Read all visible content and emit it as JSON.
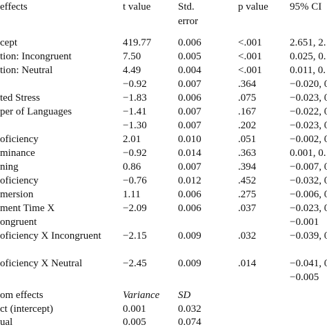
{
  "table": {
    "header": [
      "effects",
      "t value",
      "Std. error",
      "p value",
      "95% CI"
    ],
    "rows": [
      [
        "cept",
        "419.77",
        "0.006",
        "<.001",
        "2.651, 2."
      ],
      [
        "tion: Incongruent",
        "7.50",
        "0.005",
        "<.001",
        "0.025, 0."
      ],
      [
        "tion: Neutral",
        "4.49",
        "0.004",
        "<.001",
        "0.011, 0."
      ],
      [
        null,
        "−0.92",
        "0.007",
        ".364",
        "−0.020, 0."
      ],
      [
        "ted Stress",
        "−1.83",
        "0.006",
        ".075",
        "−0.023, 0."
      ],
      [
        "per of Languages",
        "−1.41",
        "0.007",
        ".167",
        "−0.022, 0."
      ],
      [
        null,
        "−1.30",
        "0.007",
        ".202",
        "−0.023, 0."
      ],
      [
        "oficiency",
        "2.01",
        "0.010",
        ".051",
        "−0.002, 0."
      ],
      [
        "minance",
        "−0.92",
        "0.014",
        ".363",
        "0.001, 0."
      ],
      [
        "ning",
        "0.86",
        "0.007",
        ".394",
        "−0.007, 0."
      ],
      [
        "oficiency",
        "−0.76",
        "0.012",
        ".452",
        "−0.032, 0."
      ],
      [
        "mersion",
        "1.11",
        "0.006",
        ".275",
        "−0.006, 0."
      ],
      [
        "ment Time X",
        "−2.09",
        "0.006",
        ".037",
        "−0.023, 0."
      ],
      [
        "ongruent",
        null,
        null,
        null,
        "−0.001"
      ],
      [
        "oficiency X Incongruent",
        "−2.15",
        "0.009",
        ".032",
        "−0.039, 0."
      ],
      [
        null,
        null,
        null,
        null,
        null
      ],
      [
        "oficiency X Neutral",
        "−2.45",
        "0.009",
        ".014",
        "−0.041, 0."
      ],
      [
        null,
        null,
        null,
        null,
        "−0.005"
      ]
    ],
    "random_header": [
      "om effects",
      "Variance",
      "SD"
    ],
    "random_rows": [
      [
        "ct (intercept)",
        "0.001",
        "0.032"
      ],
      [
        "ual",
        "0.005",
        "0.074"
      ]
    ]
  }
}
